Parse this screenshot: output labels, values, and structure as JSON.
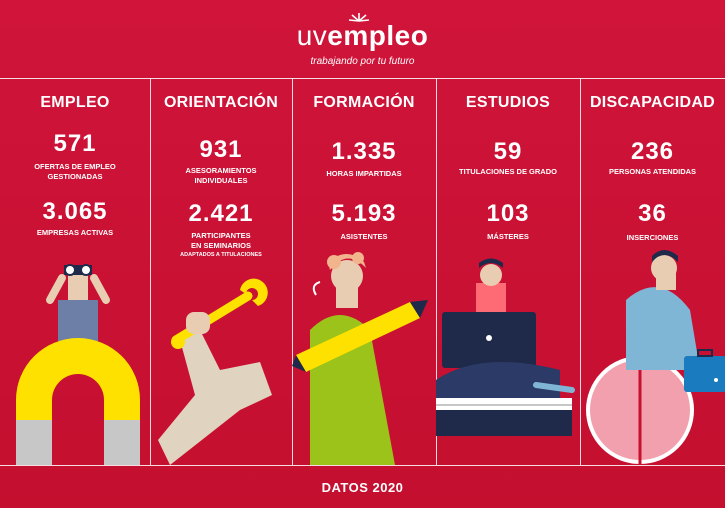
{
  "header": {
    "logo_uv": "uv",
    "logo_rest": "empleo",
    "tagline": "trabajando por tu futuro"
  },
  "columns": [
    {
      "title": "EMPLEO",
      "stats": [
        {
          "value": "571",
          "label_lines": [
            "OFERTAS DE EMPLEO",
            "GESTIONADAS"
          ]
        },
        {
          "value": "3.065",
          "label_lines": [
            "EMPRESAS ACTIVAS"
          ]
        }
      ]
    },
    {
      "title": "ORIENTACIÓN",
      "stats": [
        {
          "value": "931",
          "label_lines": [
            "ASESORAMIENTOS",
            "INDIVIDUALES"
          ]
        },
        {
          "value": "2.421",
          "label_lines": [
            "PARTICIPANTES",
            "EN SEMINARIOS"
          ],
          "note": "ADAPTADOS A TITULACIONES"
        }
      ]
    },
    {
      "title": "FORMACIÓN",
      "stats": [
        {
          "value": "1.335",
          "label_lines": [
            "HORAS IMPARTIDAS"
          ]
        },
        {
          "value": "5.193",
          "label_lines": [
            "ASISTENTES"
          ]
        }
      ]
    },
    {
      "title": "ESTUDIOS",
      "stats": [
        {
          "value": "59",
          "label_lines": [
            "TITULACIONES DE GRADO"
          ]
        },
        {
          "value": "103",
          "label_lines": [
            "MÁSTERES"
          ]
        }
      ]
    },
    {
      "title": "DISCAPACIDAD",
      "stats": [
        {
          "value": "236",
          "label_lines": [
            "PERSONAS ATENDIDAS"
          ]
        },
        {
          "value": "36",
          "label_lines": [
            "INSERCIONES"
          ]
        }
      ]
    }
  ],
  "footer": {
    "text": "DATOS 2020"
  },
  "illustrations": [
    "magnet-binoculars-icon",
    "wrench-arm-icon",
    "pencil-woman-icon",
    "laptop-books-icon",
    "wheelchair-briefcase-icon"
  ],
  "colors": {
    "background": "#c8102e",
    "magnet": "#ffe100",
    "skin": "#e8cdb3",
    "green": "#9bc31a",
    "blue": "#7fb6d6",
    "navy": "#1f2a4a"
  }
}
